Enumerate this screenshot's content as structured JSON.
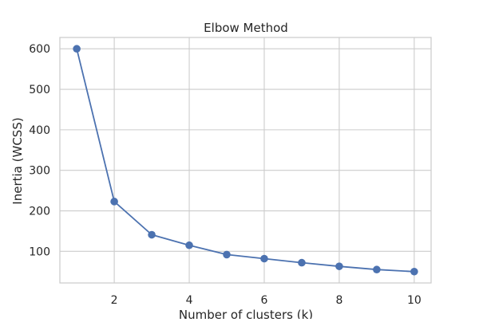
{
  "chart_data": {
    "type": "line",
    "title": "Elbow Method",
    "xlabel": "Number of clusters (k)",
    "ylabel": "Inertia (WCSS)",
    "x": [
      1,
      2,
      3,
      4,
      5,
      6,
      7,
      8,
      9,
      10
    ],
    "series": [
      {
        "values": [
          600,
          223,
          141,
          115,
          92,
          82,
          72,
          63,
          55,
          50
        ]
      }
    ],
    "xlim": [
      0.55,
      10.45
    ],
    "ylim": [
      22,
      628
    ],
    "xticks": [
      2,
      4,
      6,
      8,
      10
    ],
    "yticks": [
      100,
      200,
      300,
      400,
      500,
      600
    ],
    "grid": true,
    "line_color": "#4c72b0",
    "grid_color": "#cccccc",
    "frame_color": "#cccccc"
  }
}
